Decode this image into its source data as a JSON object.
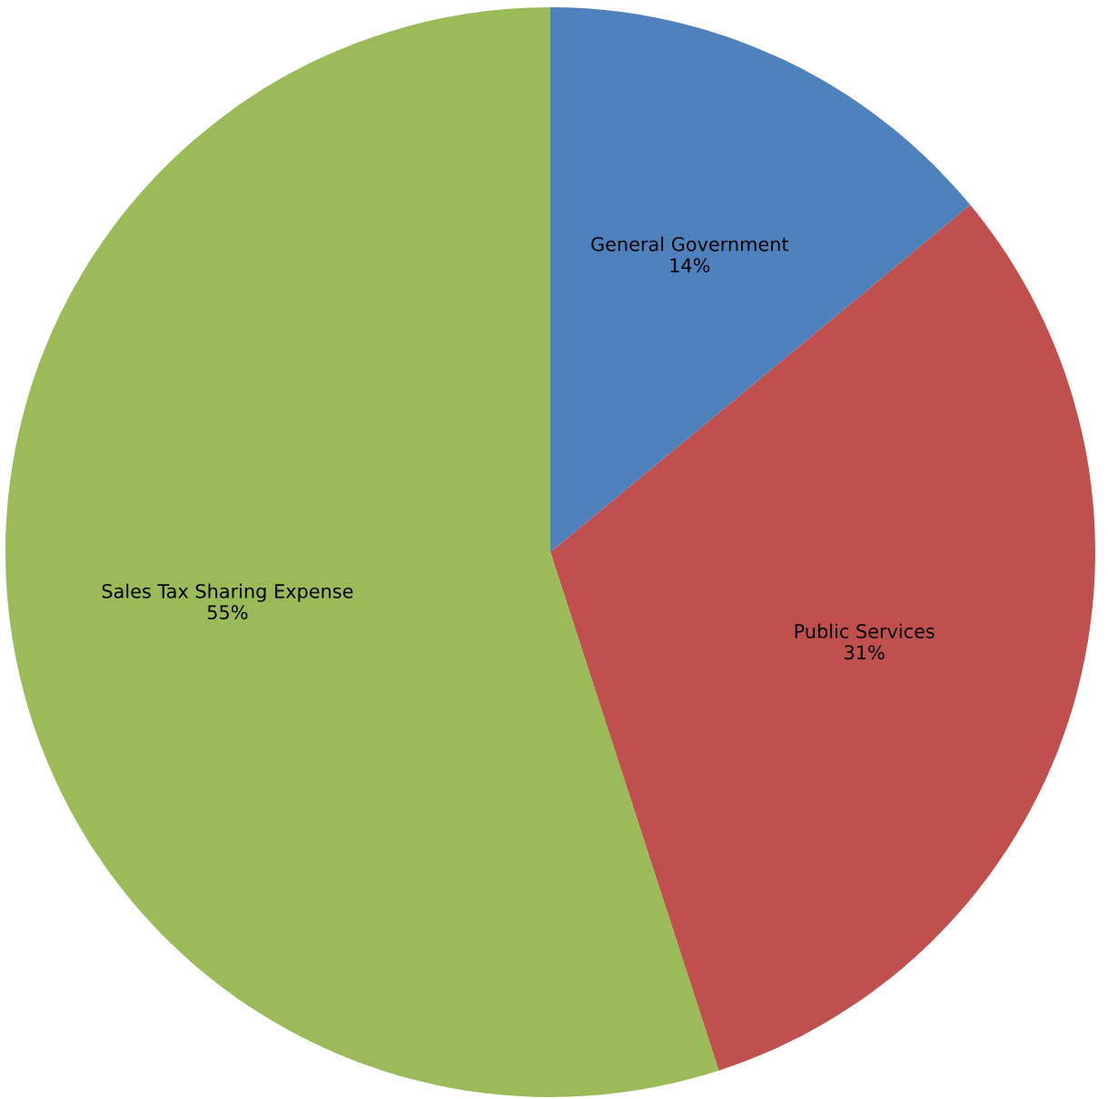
{
  "chart_data": {
    "type": "pie",
    "categories": [
      "General Government",
      "Public Services",
      "Sales Tax Sharing Expense"
    ],
    "values": [
      14,
      31,
      55
    ],
    "colors": [
      "#4f81bd",
      "#c0504d",
      "#9bbb59"
    ],
    "value_labels": [
      "14%",
      "31%",
      "55%"
    ],
    "legend": false
  }
}
